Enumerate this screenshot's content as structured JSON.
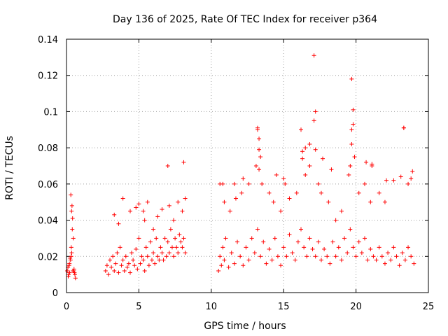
{
  "chart_data": {
    "type": "scatter",
    "title": "Day 136 of 2025, Rate Of TEC Index for receiver p364",
    "xlabel": "GPS time / hours",
    "ylabel": "ROTI / TECUs",
    "xlim": [
      0,
      25
    ],
    "ylim": [
      0,
      0.14
    ],
    "x_ticks": [
      0,
      5,
      10,
      15,
      20,
      25
    ],
    "y_ticks": [
      0,
      0.02,
      0.04,
      0.06,
      0.08,
      0.1,
      0.12,
      0.14
    ],
    "x_tick_labels": [
      "0",
      "5",
      "10",
      "15",
      "20",
      "25"
    ],
    "y_tick_labels": [
      "0",
      "0.02",
      "0.04",
      "0.06",
      "0.08",
      "0.1",
      "0.12",
      "0.14"
    ],
    "grid": true,
    "marker": "+",
    "color": "#ff0000",
    "series": [
      {
        "name": "p364",
        "x": [
          0.05,
          0.12,
          0.18,
          0.22,
          0.28,
          0.33,
          0.38,
          0.42,
          0.47,
          0.52,
          0.58,
          0.62,
          0.3,
          0.35,
          0.4,
          0.36,
          0.32,
          0.44,
          0.2,
          0.25,
          0.1,
          0.15,
          0.5,
          0.55,
          2.7,
          2.8,
          2.9,
          3.0,
          3.1,
          3.2,
          3.3,
          3.4,
          3.5,
          3.6,
          3.7,
          3.8,
          3.9,
          4.0,
          4.1,
          4.2,
          4.3,
          4.4,
          4.5,
          4.6,
          4.7,
          4.8,
          4.9,
          5.0,
          5.1,
          5.2,
          5.3,
          5.4,
          5.5,
          5.6,
          5.7,
          5.8,
          5.9,
          6.0,
          6.1,
          6.2,
          6.3,
          6.4,
          6.5,
          6.6,
          6.7,
          6.8,
          6.9,
          7.0,
          7.1,
          7.2,
          7.3,
          7.4,
          7.5,
          7.6,
          7.7,
          7.8,
          7.9,
          8.0,
          8.1,
          8.2,
          3.9,
          3.3,
          4.8,
          5.0,
          5.3,
          5.6,
          6.3,
          6.6,
          7.1,
          7.7,
          8.0,
          8.2,
          7.4,
          8.1,
          7.0,
          6.0,
          5.4,
          4.4,
          3.6,
          10.5,
          10.6,
          10.7,
          10.8,
          10.9,
          11.0,
          11.2,
          11.4,
          11.6,
          11.8,
          12.0,
          12.2,
          12.4,
          12.6,
          12.8,
          13.0,
          13.2,
          13.4,
          13.6,
          13.8,
          14.0,
          14.2,
          14.4,
          14.6,
          14.8,
          15.0,
          15.2,
          15.4,
          15.6,
          15.8,
          16.0,
          16.2,
          16.4,
          16.6,
          16.8,
          17.0,
          17.2,
          17.4,
          17.6,
          17.8,
          18.0,
          18.2,
          18.4,
          18.6,
          18.8,
          19.0,
          19.2,
          19.4,
          19.6,
          19.8,
          20.0,
          20.2,
          20.4,
          20.6,
          20.8,
          21.0,
          21.2,
          21.4,
          21.6,
          21.8,
          22.0,
          22.2,
          22.4,
          22.6,
          22.8,
          23.0,
          23.2,
          23.4,
          23.6,
          23.8,
          24.0,
          10.6,
          10.9,
          11.3,
          11.7,
          12.1,
          12.6,
          13.1,
          13.2,
          13.3,
          13.4,
          13.5,
          14.0,
          14.3,
          14.8,
          15.1,
          15.4,
          15.9,
          16.2,
          16.3,
          16.5,
          16.8,
          17.1,
          17.2,
          17.4,
          17.6,
          18.1,
          18.6,
          19.0,
          19.5,
          19.6,
          19.7,
          19.8,
          19.9,
          20.2,
          20.6,
          21.0,
          21.1,
          21.6,
          22.0,
          22.6,
          23.1,
          23.3,
          23.6,
          23.9,
          17.1,
          19.7,
          19.8,
          23.3,
          17.2,
          13.2,
          13.3,
          16.5,
          19.7,
          20.7,
          13.3,
          14.5,
          15.0,
          16.3,
          16.8,
          17.7,
          18.3,
          21.1,
          22.1,
          23.8,
          10.8,
          12.2,
          11.6
        ],
        "y": [
          0.012,
          0.009,
          0.015,
          0.011,
          0.018,
          0.025,
          0.048,
          0.041,
          0.03,
          0.013,
          0.01,
          0.008,
          0.054,
          0.045,
          0.035,
          0.022,
          0.02,
          0.012,
          0.016,
          0.019,
          0.014,
          0.01,
          0.012,
          0.011,
          0.012,
          0.015,
          0.01,
          0.018,
          0.014,
          0.02,
          0.012,
          0.016,
          0.022,
          0.011,
          0.025,
          0.015,
          0.018,
          0.012,
          0.02,
          0.014,
          0.016,
          0.011,
          0.022,
          0.018,
          0.015,
          0.024,
          0.013,
          0.03,
          0.016,
          0.02,
          0.018,
          0.012,
          0.025,
          0.02,
          0.015,
          0.028,
          0.018,
          0.022,
          0.016,
          0.03,
          0.02,
          0.018,
          0.025,
          0.022,
          0.018,
          0.03,
          0.02,
          0.028,
          0.022,
          0.035,
          0.025,
          0.02,
          0.03,
          0.025,
          0.022,
          0.032,
          0.028,
          0.025,
          0.03,
          0.022,
          0.052,
          0.043,
          0.047,
          0.049,
          0.045,
          0.05,
          0.042,
          0.046,
          0.048,
          0.05,
          0.045,
          0.052,
          0.04,
          0.072,
          0.07,
          0.035,
          0.04,
          0.045,
          0.038,
          0.012,
          0.02,
          0.015,
          0.025,
          0.018,
          0.03,
          0.014,
          0.022,
          0.016,
          0.028,
          0.02,
          0.015,
          0.025,
          0.018,
          0.03,
          0.022,
          0.035,
          0.02,
          0.028,
          0.016,
          0.024,
          0.018,
          0.03,
          0.02,
          0.015,
          0.025,
          0.02,
          0.032,
          0.022,
          0.018,
          0.028,
          0.035,
          0.025,
          0.02,
          0.03,
          0.024,
          0.02,
          0.028,
          0.018,
          0.024,
          0.02,
          0.016,
          0.028,
          0.02,
          0.025,
          0.018,
          0.03,
          0.022,
          0.035,
          0.025,
          0.02,
          0.028,
          0.022,
          0.03,
          0.018,
          0.024,
          0.02,
          0.018,
          0.025,
          0.02,
          0.016,
          0.022,
          0.018,
          0.025,
          0.02,
          0.015,
          0.022,
          0.018,
          0.025,
          0.02,
          0.016,
          0.06,
          0.05,
          0.045,
          0.052,
          0.055,
          0.06,
          0.07,
          0.09,
          0.085,
          0.075,
          0.06,
          0.055,
          0.05,
          0.045,
          0.06,
          0.052,
          0.055,
          0.09,
          0.078,
          0.065,
          0.07,
          0.095,
          0.1,
          0.06,
          0.055,
          0.05,
          0.04,
          0.045,
          0.065,
          0.07,
          0.09,
          0.101,
          0.075,
          0.055,
          0.06,
          0.05,
          0.071,
          0.055,
          0.05,
          0.062,
          0.064,
          0.091,
          0.06,
          0.067,
          0.131,
          0.118,
          0.093,
          0.091,
          0.079,
          0.091,
          0.079,
          0.08,
          0.082,
          0.072,
          0.068,
          0.065,
          0.063,
          0.074,
          0.082,
          0.074,
          0.068,
          0.07,
          0.062,
          0.063,
          0.06,
          0.063,
          0.06
        ]
      }
    ]
  }
}
